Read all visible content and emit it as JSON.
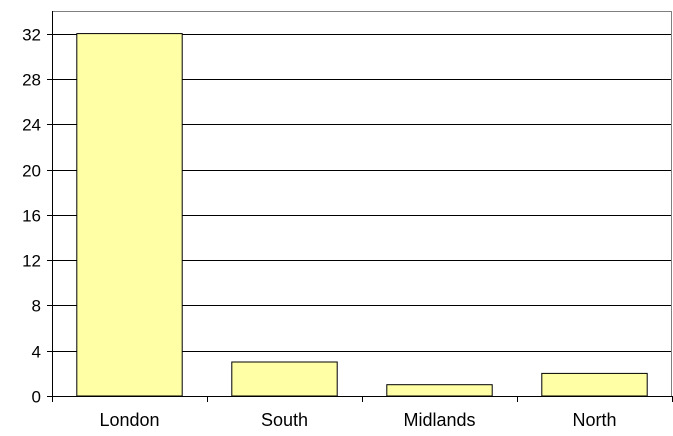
{
  "chart_data": {
    "type": "bar",
    "categories": [
      "London",
      "South",
      "Midlands",
      "North"
    ],
    "values": [
      32,
      3,
      1,
      2
    ],
    "title": "",
    "xlabel": "",
    "ylabel": "",
    "ylim": [
      0,
      34
    ],
    "yticks": [
      0,
      4,
      8,
      12,
      16,
      20,
      24,
      28,
      32
    ],
    "grid": true,
    "legend": "none",
    "bar_color": "#FFFFA6",
    "bar_edge_color": "#000000",
    "grid_color": "#000000"
  }
}
